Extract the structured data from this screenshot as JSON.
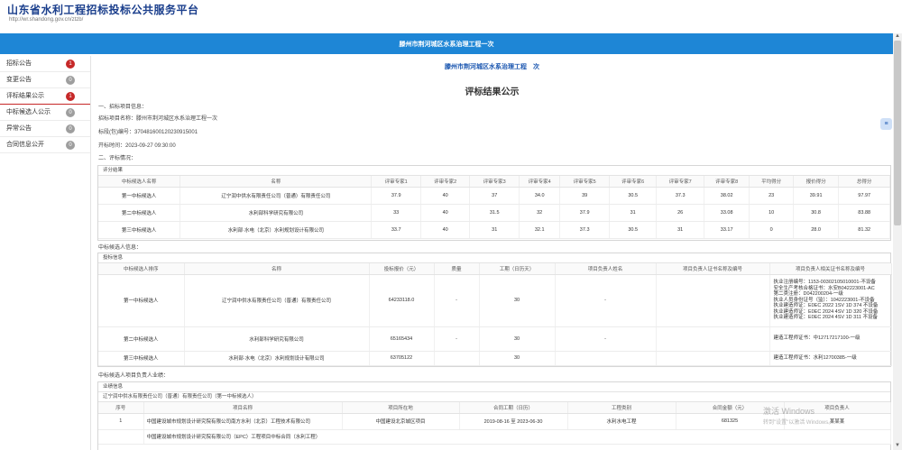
{
  "header": {
    "site_title": "山东省水利工程招标投标公共服务平台",
    "site_url": "http://wr.shandong.gov.cn/ztzb/"
  },
  "banner": {
    "title": "滕州市荆河城区水系治理工程一次"
  },
  "sidebar": {
    "items": [
      {
        "label": "招标公告",
        "badge": "1",
        "badge_color": "#c62828",
        "active": false
      },
      {
        "label": "变更公告",
        "badge": "0",
        "badge_color": "#9e9e9e",
        "active": false
      },
      {
        "label": "评标结果公示",
        "badge": "1",
        "badge_color": "#c62828",
        "active": true
      },
      {
        "label": "中标候选人公示",
        "badge": "0",
        "badge_color": "#9e9e9e",
        "active": false
      },
      {
        "label": "异常公告",
        "badge": "0",
        "badge_color": "#9e9e9e",
        "active": false
      },
      {
        "label": "合同信息公开",
        "badge": "0",
        "badge_color": "#9e9e9e",
        "active": false
      }
    ]
  },
  "main": {
    "project_link": "滕州市荆河城区水系治理工程　次",
    "heading": "评标结果公示",
    "section1": "一、招标项目信息：",
    "project_name": "招标项目名称：滕州市荆河城区水系治理工程一次",
    "project_code": "标段(包)编号：370481600120230915001",
    "open_time": "开标时间：2023-09-27 09:30:00",
    "section2": "二、评标情况：",
    "scores": {
      "label": "评分结果",
      "headers": [
        "中标候选人名称",
        "名称",
        "评审专家1",
        "评审专家2",
        "评审专家3",
        "评审专家4",
        "评审专家5",
        "评审专家6",
        "评审专家7",
        "评审专家8",
        "平均得分",
        "报价得分",
        "总得分"
      ],
      "rows": [
        [
          "第一中标候选人",
          "辽宁润中供水有限责任公司（普通）有限责任公司",
          "37.9",
          "40",
          "37",
          "34.0",
          "39",
          "30.5",
          "37.3",
          "38.02",
          "23",
          "39.91",
          "97.97"
        ],
        [
          "第二中标候选人",
          "水利部科学研究有限公司",
          "33",
          "40",
          "31.5",
          "32",
          "37.9",
          "31",
          "26",
          "33.08",
          "10",
          "30.8",
          "83.88"
        ],
        [
          "第三中标候选人",
          "水利部·水电（北京）水利规划设计有限公司",
          "33.7",
          "40",
          "31",
          "32.1",
          "37.3",
          "30.5",
          "31",
          "33.17",
          "0",
          "28.0",
          "81.32"
        ]
      ]
    },
    "section3": "中标候选人信息：",
    "candidates": {
      "label": "投标信息",
      "headers": [
        "中标候选人排序",
        "名称",
        "投标报价（元）",
        "质量",
        "工期（日历天）",
        "项目负责人姓名",
        "项目负责人证书名称及编号",
        "项目负责人相关证书名称及编号"
      ],
      "rows": [
        {
          "rank": "第一中标候选人",
          "name": "辽宁润中供水有限责任公司（普通）有限责任公司",
          "price": "64233118.0",
          "quality": "-",
          "period": "30",
          "manager": "-",
          "cert": "",
          "props": [
            "执业注册编号：1153-00302105010001-不设备",
            "安全生产考核合格证书：水安B042223001-AC",
            "第二类注册：D042200204-一级",
            "执业人员身份证号（监）：1042223001-不设备",
            "执业建造师证：E0EC 2022 1SV 1D 374 不设备",
            "执业建造师证：E0EC 2024 4SV 1D 320 不设备",
            "执业建造师证：E0EC 2024 4SV 1D 311 不设备"
          ]
        },
        {
          "rank": "第二中标候选人",
          "name": "水利部科学研究有限公司",
          "price": "65165434",
          "quality": "-",
          "period": "30",
          "manager": "-",
          "cert": "",
          "props": [
            "建造工程师证书：中12717217100-一级"
          ]
        },
        {
          "rank": "第三中标候选人",
          "name": "水利部·水电（北京）水利规划设计有限公司",
          "price": "63705122",
          "quality": "",
          "period": "30",
          "manager": "",
          "cert": "",
          "props": [
            "建造工程师证书：水利12700385-一级"
          ]
        }
      ]
    },
    "section4": "中标候选人项目负责人业绩：",
    "perf": {
      "label": "业绩信息",
      "company_line": "辽宁润中供水有限责任公司（普通）有限责任公司（第一中标候选人）",
      "headers": [
        "序号",
        "项目名称",
        "项目所在地",
        "合同工期（日历）",
        "工程类别",
        "合同金额（元）",
        "项目负责人"
      ],
      "rows": [
        [
          "1",
          "中国建设城市规划设计研究院有限公司南方水利（北京）工程技术有限公司",
          "中国建设北京城区项目",
          "2019-08-16 至 2023-06-30",
          "水利水电工程",
          "681325",
          "某某某"
        ]
      ],
      "row2": "中国建设城市规划设计研究院有限公司（EPC）工程项目中标合同（水利工程）"
    }
  },
  "float_button": {
    "label": "≡"
  },
  "watermark": {
    "line1": "激活 Windows",
    "line2": "转到\"设置\"以激活 Windows。"
  }
}
